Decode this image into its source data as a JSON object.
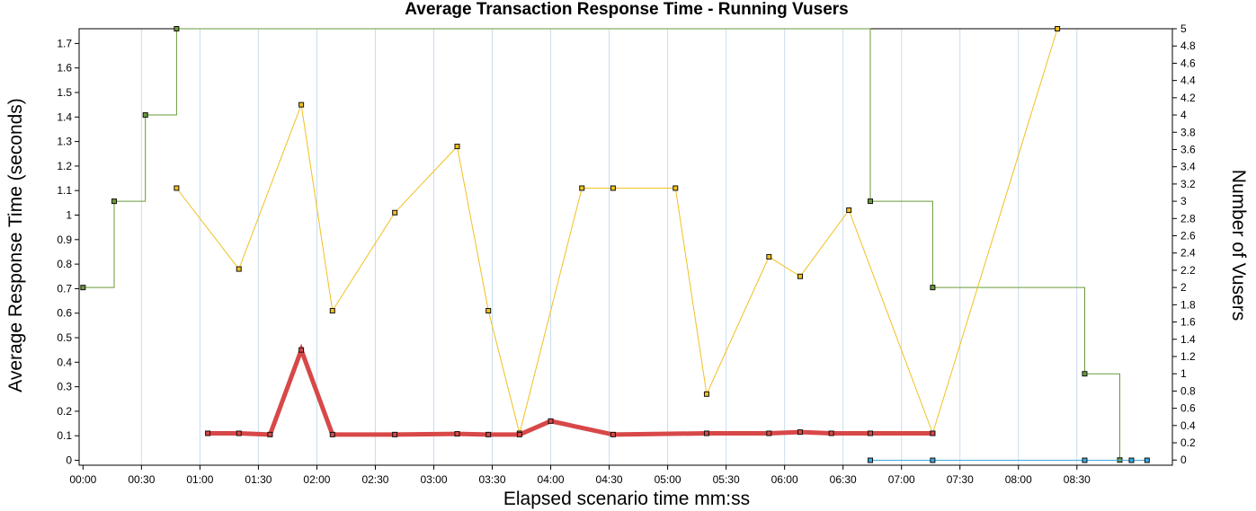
{
  "chart_data": {
    "type": "line",
    "title": "Average Transaction Response Time - Running Vusers",
    "xlabel": "Elapsed scenario time mm:ss",
    "ylabel_left": "Average Response Time (seconds)",
    "ylabel_right": "Number of Vusers",
    "xlim_seconds": [
      -2,
      559
    ],
    "ylim_left": [
      -0.02,
      1.76
    ],
    "ylim_right": [
      -0.06,
      5.0
    ],
    "x_ticks": [
      "00:00",
      "00:30",
      "01:00",
      "01:30",
      "02:00",
      "02:30",
      "03:00",
      "03:30",
      "04:00",
      "04:30",
      "05:00",
      "05:30",
      "06:00",
      "06:30",
      "07:00",
      "07:30",
      "08:00",
      "08:30"
    ],
    "y_left_ticks": [
      "0",
      "0.1",
      "0.2",
      "0.3",
      "0.4",
      "0.5",
      "0.6",
      "0.7",
      "0.8",
      "0.9",
      "1",
      "1.1",
      "1.2",
      "1.3",
      "1.4",
      "1.5",
      "1.6",
      "1.7"
    ],
    "y_right_ticks": [
      "0",
      "0.2",
      "0.4",
      "0.6",
      "0.8",
      "1",
      "1.2",
      "1.4",
      "1.6",
      "1.8",
      "2",
      "2.2",
      "2.4",
      "2.6",
      "2.8",
      "3",
      "3.2",
      "3.4",
      "3.6",
      "3.8",
      "4",
      "4.2",
      "4.4",
      "4.6",
      "4.8",
      "5"
    ],
    "grid": "vertical",
    "legend": "none",
    "series": [
      {
        "axis": "right",
        "kind": "step",
        "color": "#6a9a3a",
        "width": 1,
        "x": [
          0,
          16,
          32,
          48,
          404,
          436,
          514,
          532
        ],
        "values": [
          2,
          3,
          4,
          5,
          3,
          2,
          1,
          0
        ]
      },
      {
        "axis": "left",
        "kind": "line",
        "color": "#f0c020",
        "width": 1,
        "x": [
          48,
          80,
          112,
          128,
          160,
          192,
          208,
          224,
          256,
          272,
          304,
          320,
          352,
          368,
          393,
          436,
          500
        ],
        "values": [
          1.11,
          0.78,
          1.45,
          0.61,
          1.01,
          1.28,
          0.61,
          0.11,
          1.11,
          1.11,
          1.11,
          0.27,
          0.83,
          0.75,
          1.02,
          0.11,
          1.76
        ]
      },
      {
        "axis": "left",
        "kind": "line",
        "color": "#d84848",
        "width": 5,
        "x": [
          64,
          80,
          96,
          112,
          128,
          160,
          192,
          208,
          224,
          240,
          272,
          320,
          352,
          368,
          384,
          404,
          436
        ],
        "values": [
          0.11,
          0.11,
          0.105,
          0.45,
          0.105,
          0.105,
          0.108,
          0.105,
          0.105,
          0.16,
          0.105,
          0.11,
          0.11,
          0.115,
          0.11,
          0.11,
          0.11
        ]
      },
      {
        "axis": "left",
        "kind": "line",
        "color": "#3ca8e0",
        "width": 1,
        "x": [
          404,
          436,
          514,
          538,
          546
        ],
        "values": [
          0,
          0,
          0,
          0,
          0
        ]
      }
    ]
  }
}
